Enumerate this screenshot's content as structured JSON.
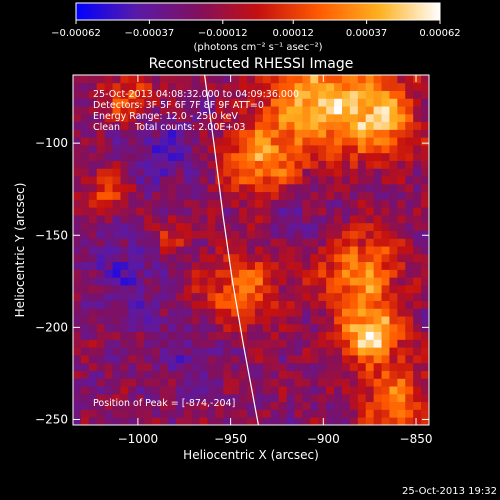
{
  "chart_data": {
    "type": "heatmap",
    "title": "Reconstructed RHESSI Image",
    "xlabel": "Heliocentric X (arcsec)",
    "ylabel": "Heliocentric Y (arcsec)",
    "xlim": [
      -1035,
      -843
    ],
    "ylim": [
      -253,
      -63
    ],
    "xticks": [
      -1000,
      -950,
      -900,
      -850
    ],
    "yticks": [
      -100,
      -150,
      -200,
      -250
    ],
    "xtick_labels": [
      "−1000",
      "−950",
      "−900",
      "−850"
    ],
    "ytick_labels": [
      "−100",
      "−150",
      "−200",
      "−250"
    ],
    "colorbar": {
      "range": [
        -0.00062,
        0.00062
      ],
      "ticks": [
        -0.00062,
        -0.00037,
        -0.00012,
        0.00012,
        0.00037,
        0.00062
      ],
      "tick_labels": [
        "−0.00062",
        "−0.00037",
        "−0.00012",
        "0.00012",
        "0.00037",
        "0.00062"
      ],
      "label": "(photons cm⁻² s⁻¹ asec⁻²)",
      "colors": [
        "#0000ff",
        "#5a1aa8",
        "#801060",
        "#c41010",
        "#ff5a00",
        "#ffb020",
        "#ffffff"
      ]
    },
    "annotations": [
      "25-Oct-2013 04:08:32.000 to 04:09:36.000",
      "Detectors: 3F 5F 6F 7F 8F 9F ATT=0",
      "Energy Range: 12.0 - 25.0 keV",
      "Clean     Total counts: 2.00E+03",
      "Position of Peak = [-874,-204]"
    ],
    "peak": {
      "x": -874,
      "y": -204
    },
    "limb_curve": [
      {
        "x": -964,
        "y": -63
      },
      {
        "x": -959,
        "y": -100
      },
      {
        "x": -954,
        "y": -140
      },
      {
        "x": -949,
        "y": -175
      },
      {
        "x": -943,
        "y": -210
      },
      {
        "x": -935,
        "y": -253
      }
    ],
    "cells": {
      "nx": 45,
      "ny": 45,
      "hot_blobs": [
        {
          "x": -905,
          "y": -78,
          "amp": 0.85,
          "r": 28
        },
        {
          "x": -870,
          "y": -85,
          "amp": 0.8,
          "r": 22
        },
        {
          "x": -935,
          "y": -110,
          "amp": 0.7,
          "r": 20
        },
        {
          "x": -945,
          "y": -180,
          "amp": 0.6,
          "r": 22
        },
        {
          "x": -880,
          "y": -170,
          "amp": 0.75,
          "r": 22
        },
        {
          "x": -874,
          "y": -204,
          "amp": 1.0,
          "r": 16
        },
        {
          "x": -860,
          "y": -240,
          "amp": 0.7,
          "r": 18
        },
        {
          "x": -1015,
          "y": -125,
          "amp": 0.55,
          "r": 12
        },
        {
          "x": -1005,
          "y": -75,
          "amp": 0.5,
          "r": 15
        },
        {
          "x": -985,
          "y": -150,
          "amp": 0.35,
          "r": 12
        }
      ],
      "cold_blobs": [
        {
          "x": -990,
          "y": -105,
          "amp": 0.8,
          "r": 22
        },
        {
          "x": -1005,
          "y": -170,
          "amp": 0.7,
          "r": 24
        },
        {
          "x": -970,
          "y": -215,
          "amp": 0.6,
          "r": 20
        },
        {
          "x": -915,
          "y": -140,
          "amp": 0.55,
          "r": 16
        }
      ]
    }
  },
  "footer": {
    "timestamp": "25-Oct-2013 19:32"
  }
}
